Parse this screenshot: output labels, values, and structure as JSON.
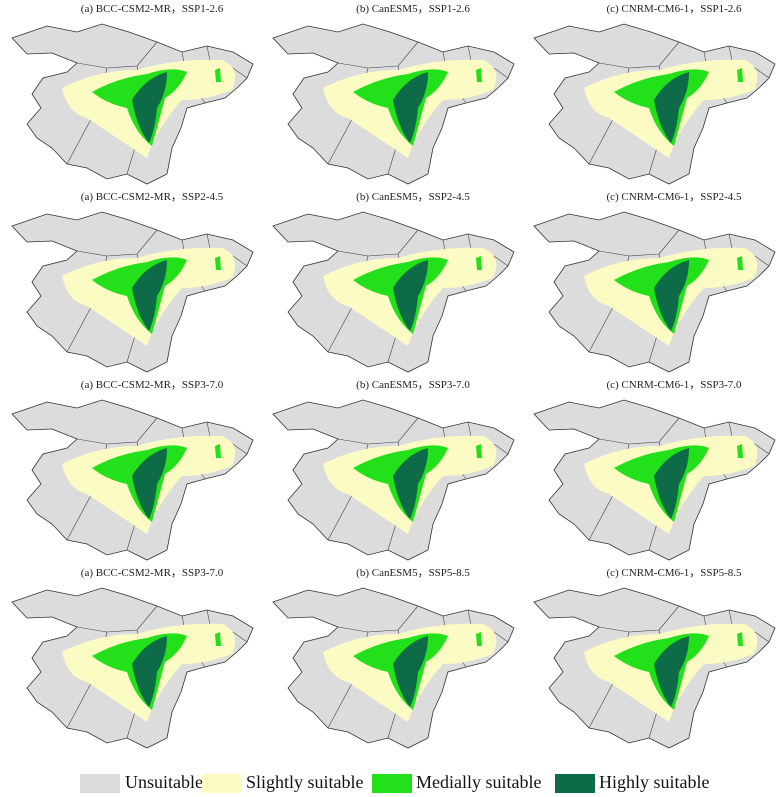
{
  "panels": [
    {
      "title": "(a) BCC-CSM2-MR，SSP1-2.6"
    },
    {
      "title": "(b) CanESM5，SSP1-2.6"
    },
    {
      "title": "(c) CNRM-CM6-1，SSP1-2.6"
    },
    {
      "title": "(a) BCC-CSM2-MR，SSP2-4.5"
    },
    {
      "title": "(b) CanESM5，SSP2-4.5"
    },
    {
      "title": "(c) CNRM-CM6-1，SSP2-4.5"
    },
    {
      "title": "(a) BCC-CSM2-MR，SSP3-7.0"
    },
    {
      "title": "(b) CanESM5，SSP3-7.0"
    },
    {
      "title": "(c) CNRM-CM6-1，SSP3-7.0"
    },
    {
      "title": "(a) BCC-CSM2-MR，SSP3-7.0"
    },
    {
      "title": "(b) CanESM5，SSP5-8.5"
    },
    {
      "title": "(c) CNRM-CM6-1，SSP5-8.5"
    }
  ],
  "legend": [
    {
      "label": "Unsuitable"
    },
    {
      "label": "Slightly suitable"
    },
    {
      "label": "Medially suitable"
    },
    {
      "label": "Highly suitable"
    }
  ]
}
